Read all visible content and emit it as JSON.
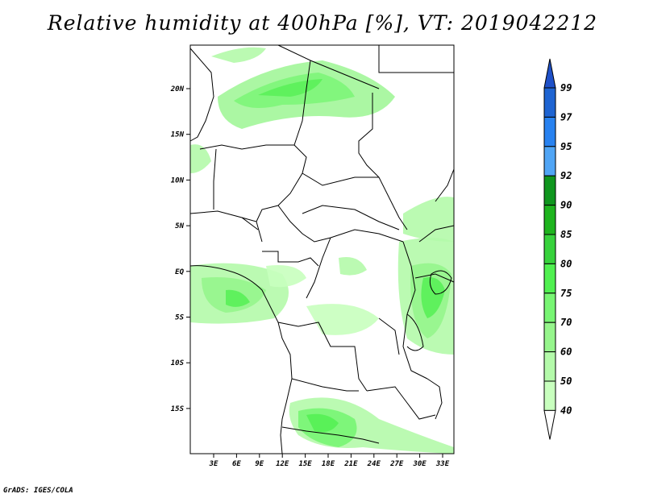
{
  "title": "Relative humidity at 400hPa [%], VT: 2019042212",
  "footer": "GrADS: IGES/COLA",
  "map": {
    "lat_labels": [
      "20N",
      "15N",
      "10N",
      "5N",
      "EQ",
      "5S",
      "10S",
      "15S"
    ],
    "lon_labels": [
      "3E",
      "6E",
      "9E",
      "12E",
      "15E",
      "18E",
      "21E",
      "24E",
      "27E",
      "30E",
      "33E"
    ]
  },
  "colorbar": {
    "levels": [
      "99",
      "97",
      "95",
      "92",
      "90",
      "85",
      "80",
      "75",
      "70",
      "60",
      "50",
      "40"
    ],
    "colors": [
      "#1e64d2",
      "#2882f0",
      "#50a5f5",
      "#0f961e",
      "#1eb41e",
      "#37d23c",
      "#50f050",
      "#78f573",
      "#96f58c",
      "#b4faaa",
      "#c8ffbe",
      "#f0fff0"
    ]
  }
}
